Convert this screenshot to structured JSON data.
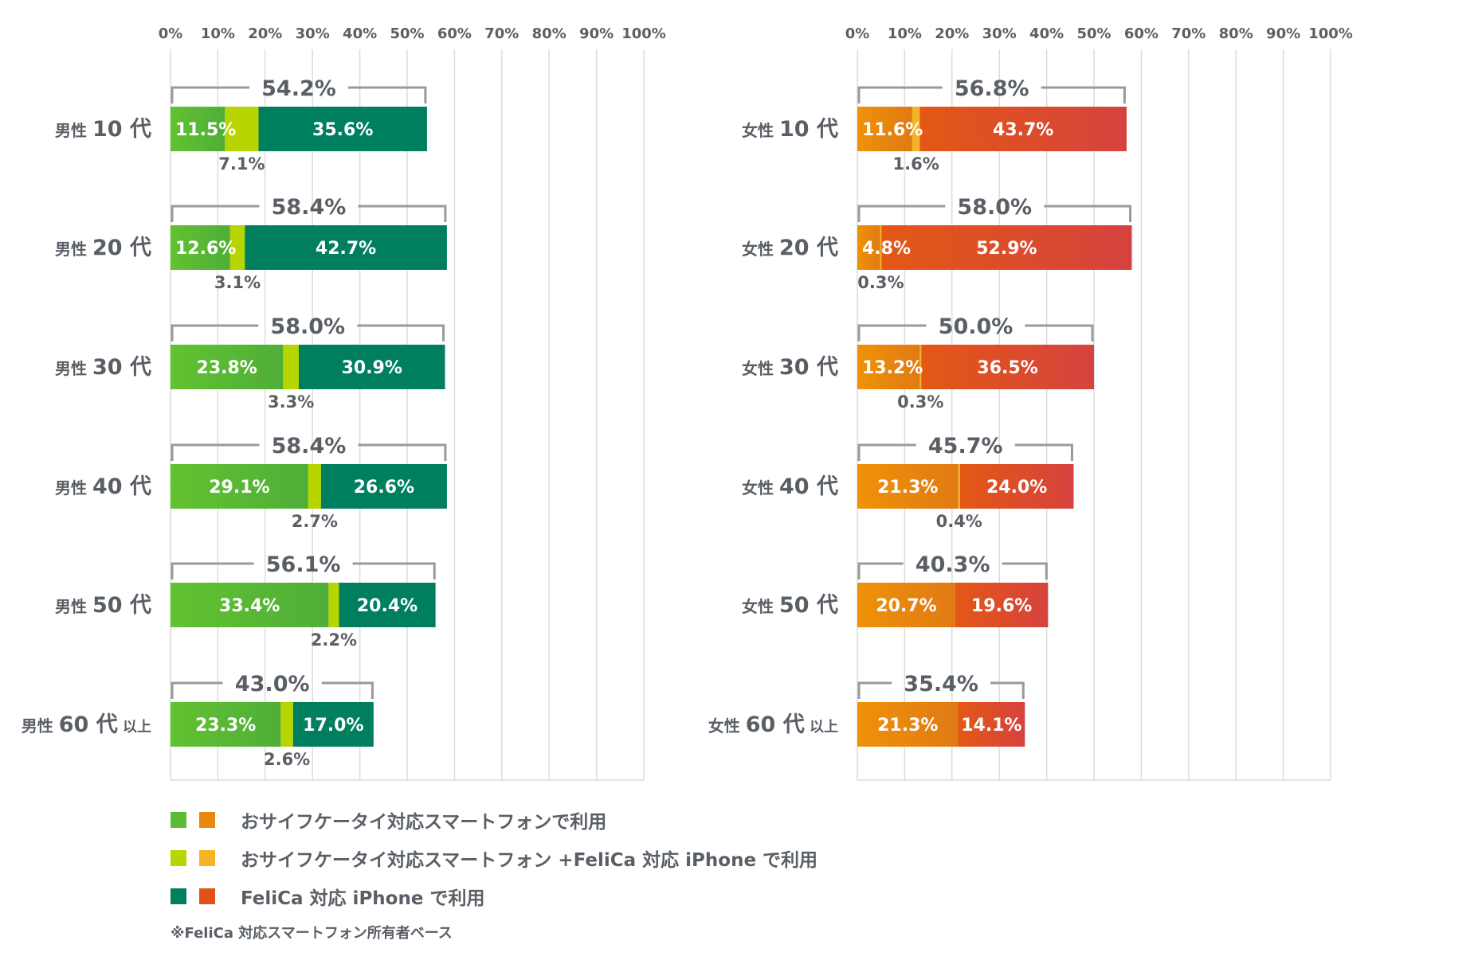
{
  "chart_data": [
    {
      "type": "bar",
      "stacked": true,
      "orientation": "horizontal",
      "x_ticks": [
        "0%",
        "10%",
        "20%",
        "30%",
        "40%",
        "50%",
        "60%",
        "70%",
        "80%",
        "90%",
        "100%"
      ],
      "xlim": [
        0,
        100
      ],
      "grid": true,
      "categories": [
        {
          "main": "男性",
          "age": "10 代",
          "suffix": ""
        },
        {
          "main": "男性",
          "age": "20 代",
          "suffix": ""
        },
        {
          "main": "男性",
          "age": "30 代",
          "suffix": ""
        },
        {
          "main": "男性",
          "age": "40 代",
          "suffix": ""
        },
        {
          "main": "男性",
          "age": "50 代",
          "suffix": ""
        },
        {
          "main": "男性",
          "age": "60 代",
          "suffix": "以上"
        }
      ],
      "series": [
        {
          "values": [
            11.5,
            12.6,
            23.8,
            29.1,
            33.4,
            23.3
          ],
          "labels": [
            "11.5%",
            "12.6%",
            "23.8%",
            "29.1%",
            "33.4%",
            "23.3%"
          ],
          "color": "#5cbb34"
        },
        {
          "values": [
            7.1,
            3.1,
            3.3,
            2.7,
            2.2,
            2.6
          ],
          "labels": [
            "7.1%",
            "3.1%",
            "3.3%",
            "2.7%",
            "2.2%",
            "2.6%"
          ],
          "color": "#b7d500"
        },
        {
          "values": [
            35.6,
            42.7,
            30.9,
            26.6,
            20.4,
            17.0
          ],
          "labels": [
            "35.6%",
            "42.7%",
            "30.9%",
            "26.6%",
            "20.4%",
            "17.0%"
          ],
          "color": "#007f5f"
        }
      ],
      "totals": [
        54.2,
        58.4,
        58.0,
        58.4,
        56.1,
        43.0
      ],
      "total_labels": [
        "54.2%",
        "58.4%",
        "58.0%",
        "58.4%",
        "56.1%",
        "43.0%"
      ]
    },
    {
      "type": "bar",
      "stacked": true,
      "orientation": "horizontal",
      "x_ticks": [
        "0%",
        "10%",
        "20%",
        "30%",
        "40%",
        "50%",
        "60%",
        "70%",
        "80%",
        "90%",
        "100%"
      ],
      "xlim": [
        0,
        100
      ],
      "grid": true,
      "categories": [
        {
          "main": "女性",
          "age": "10 代",
          "suffix": ""
        },
        {
          "main": "女性",
          "age": "20 代",
          "suffix": ""
        },
        {
          "main": "女性",
          "age": "30 代",
          "suffix": ""
        },
        {
          "main": "女性",
          "age": "40 代",
          "suffix": ""
        },
        {
          "main": "女性",
          "age": "50 代",
          "suffix": ""
        },
        {
          "main": "女性",
          "age": "60 代",
          "suffix": "以上"
        }
      ],
      "series": [
        {
          "values": [
            11.6,
            4.8,
            13.2,
            21.3,
            20.7,
            21.3
          ],
          "labels": [
            "11.6%",
            "4.8%",
            "13.2%",
            "21.3%",
            "20.7%",
            "21.3%"
          ],
          "color": "#e8890c"
        },
        {
          "values": [
            1.6,
            0.3,
            0.3,
            0.4,
            0,
            0
          ],
          "labels": [
            "1.6%",
            "0.3%",
            "0.3%",
            "0.4%",
            "",
            ""
          ],
          "color": "#f5b326"
        },
        {
          "values": [
            43.7,
            52.9,
            36.5,
            24.0,
            19.6,
            14.1
          ],
          "labels": [
            "43.7%",
            "52.9%",
            "36.5%",
            "24.0%",
            "19.6%",
            "14.1%"
          ],
          "color": "#e0521a"
        }
      ],
      "totals": [
        56.8,
        58.0,
        50.0,
        45.7,
        40.3,
        35.4
      ],
      "total_labels": [
        "56.8%",
        "58.0%",
        "50.0%",
        "45.7%",
        "40.3%",
        "35.4%"
      ]
    }
  ],
  "legend": {
    "items": [
      {
        "text": "おサイフケータイ対応スマートフォンで利用",
        "colors": [
          "#5cbb34",
          "#e8890c"
        ]
      },
      {
        "text": "おサイフケータイ対応スマートフォン +FeliCa 対応 iPhone で利用",
        "colors": [
          "#b7d500",
          "#f5b326"
        ]
      },
      {
        "text": "FeliCa 対応 iPhone で利用",
        "colors": [
          "#007f5f",
          "#e0521a"
        ]
      }
    ]
  },
  "footnote": "※FeliCa 対応スマートフォン所有者ベース"
}
